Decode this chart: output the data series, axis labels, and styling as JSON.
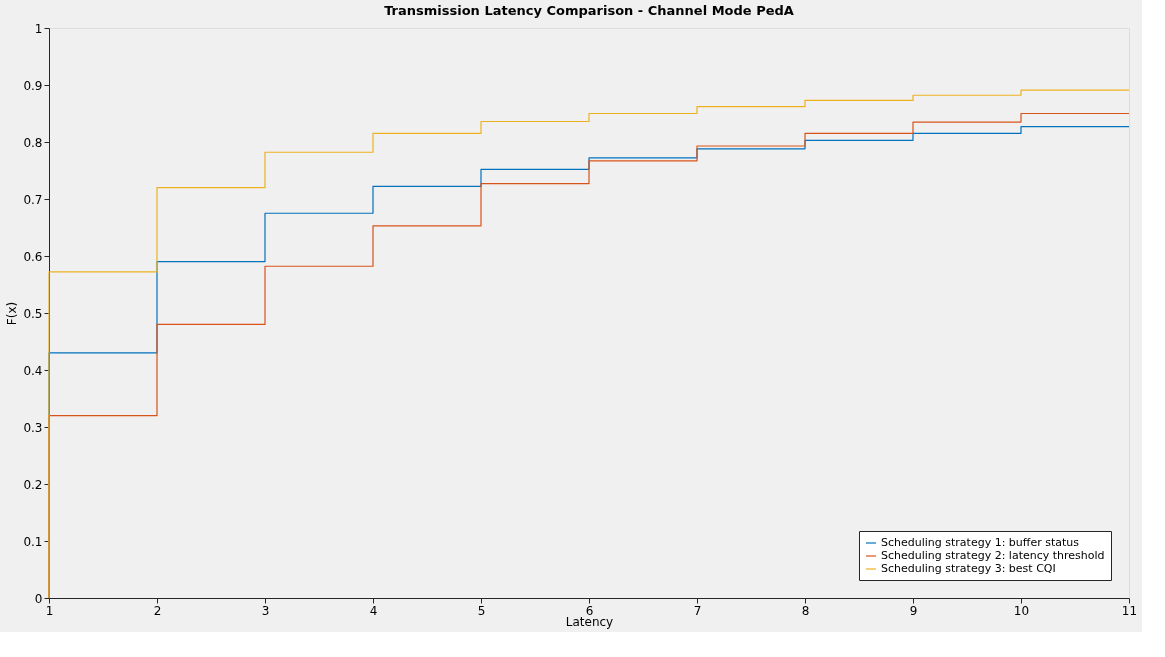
{
  "chart_data": {
    "type": "step",
    "title": "Transmission Latency Comparison - Channel Mode PedA",
    "xlabel": "Latency",
    "ylabel": "F(x)",
    "x": [
      1,
      1,
      2,
      3,
      4,
      5,
      6,
      7,
      8,
      9,
      10,
      11
    ],
    "series": [
      {
        "name": "Scheduling strategy 1: buffer status",
        "color": "#0072bd",
        "values": [
          0,
          0.43,
          0.59,
          0.675,
          0.722,
          0.752,
          0.772,
          0.788,
          0.803,
          0.815,
          0.827,
          0.827
        ]
      },
      {
        "name": "Scheduling strategy 2: latency threshold",
        "color": "#d95319",
        "values": [
          0,
          0.32,
          0.48,
          0.582,
          0.653,
          0.727,
          0.767,
          0.793,
          0.815,
          0.835,
          0.85,
          0.85
        ]
      },
      {
        "name": "Scheduling strategy 3: best CQI",
        "color": "#edb120",
        "values": [
          0,
          0.572,
          0.72,
          0.782,
          0.815,
          0.836,
          0.85,
          0.862,
          0.873,
          0.882,
          0.891,
          0.891
        ]
      }
    ],
    "xlim": [
      1,
      11
    ],
    "xticks": [
      1,
      2,
      3,
      4,
      5,
      6,
      7,
      8,
      9,
      10,
      11
    ],
    "ylim": [
      0,
      1
    ],
    "yticks": [
      0,
      0.1,
      0.2,
      0.3,
      0.4,
      0.5,
      0.6,
      0.7,
      0.8,
      0.9,
      1
    ],
    "grid": false,
    "legend": "bottom right",
    "marker": "none",
    "line_style": "solid"
  }
}
